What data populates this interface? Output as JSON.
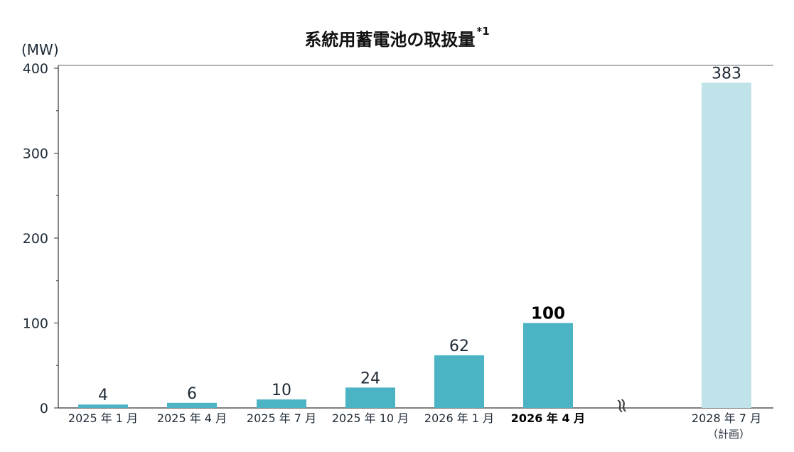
{
  "chart_data": {
    "type": "bar",
    "title": "系統用蓄電池の取扱量",
    "title_note_mark": "*1",
    "ylabel": "(MW)",
    "ylim": [
      0,
      400
    ],
    "yticks": [
      0,
      100,
      200,
      300,
      400
    ],
    "categories": [
      "2025 年 1 月",
      "2025 年 4 月",
      "2025 年 7 月",
      "2025 年 10 月",
      "2026 年 1 月",
      "2026 年 4 月",
      "2028 年 7 月"
    ],
    "values": [
      4,
      6,
      10,
      24,
      62,
      100,
      383
    ],
    "value_labels": [
      "4",
      "6",
      "10",
      "24",
      "62",
      "100",
      "383"
    ],
    "plan_note": "（計画）",
    "highlight_category": "2026 年 4 月",
    "axis_break_symbol": "≈",
    "colors": {
      "actual": "#4bb3c3",
      "plan": "#bfe3e9",
      "axis": "#333333",
      "text": "#1e2a36"
    },
    "grid": false,
    "legend": "none"
  }
}
